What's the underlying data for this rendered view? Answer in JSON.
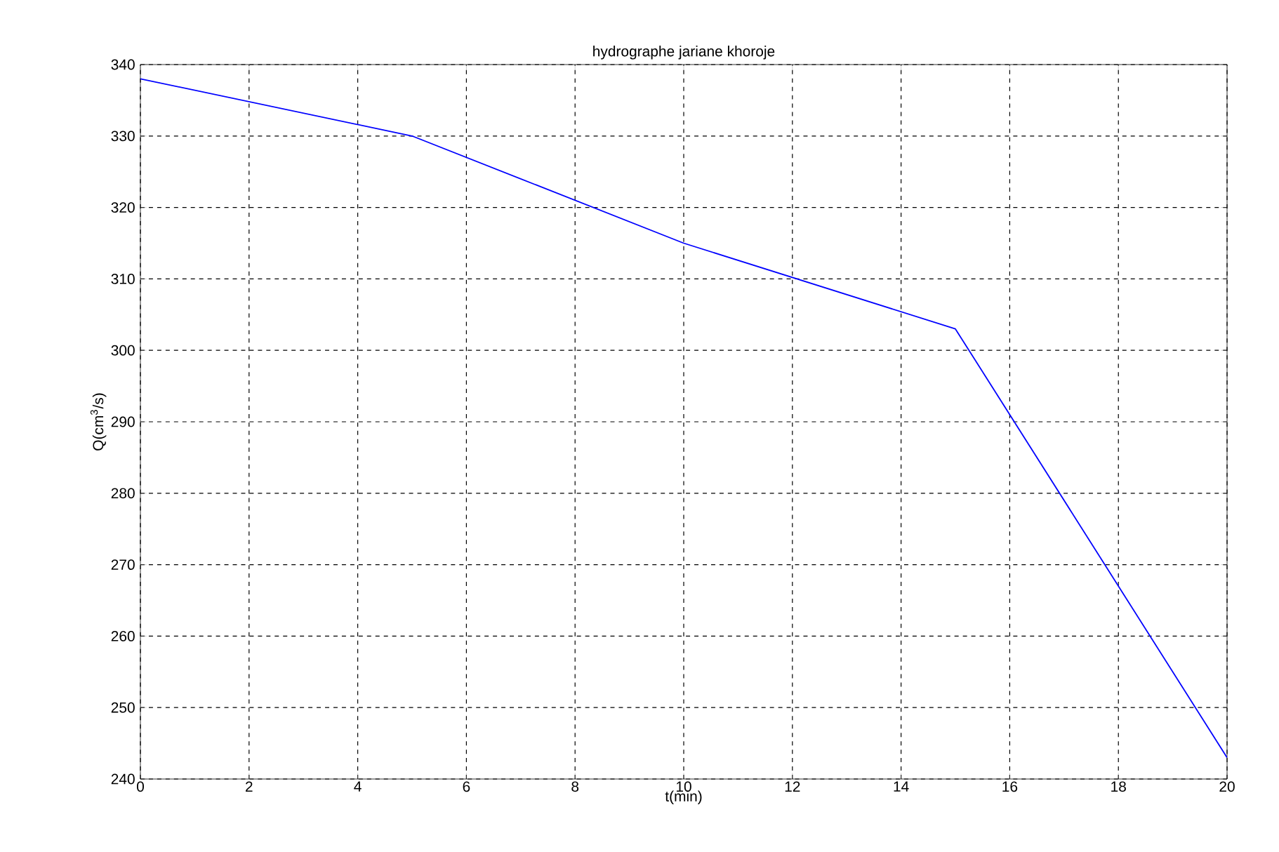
{
  "chart_data": {
    "type": "line",
    "title": "hydrographe jariane khoroje",
    "xlabel": "t(min)",
    "ylabel": "Q(cm$^{3}$/s)",
    "x": [
      0,
      5,
      10,
      15,
      20
    ],
    "series": [
      {
        "color": "#0000ff",
        "values": [
          338,
          330,
          315,
          303,
          243
        ]
      }
    ],
    "xlim": [
      0,
      20
    ],
    "ylim": [
      240,
      340
    ],
    "xticks": [
      0,
      2,
      4,
      6,
      8,
      10,
      12,
      14,
      16,
      18,
      20
    ],
    "yticks": [
      240,
      250,
      260,
      270,
      280,
      290,
      300,
      310,
      320,
      330,
      340
    ],
    "grid": true,
    "line_style": "solid",
    "marker": "none"
  }
}
